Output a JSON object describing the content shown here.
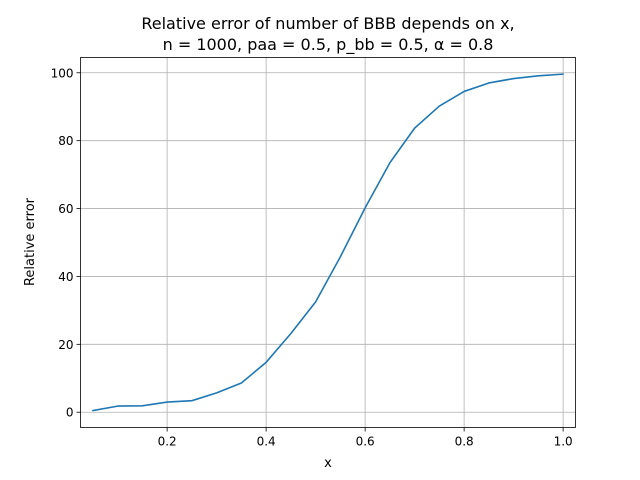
{
  "chart_data": {
    "type": "line",
    "title_line1": "Relative error of number of BBB depends on x,",
    "title_line2": "n = 1000, paa = 0.5, p_bb = 0.5, α = 0.8",
    "xlabel": "x",
    "ylabel": "Relative error",
    "xlim": [
      0.025,
      1.025
    ],
    "ylim": [
      -4.5,
      104.5
    ],
    "xticks": [
      0.2,
      0.4,
      0.6,
      0.8,
      1.0
    ],
    "xtick_labels": [
      "0.2",
      "0.4",
      "0.6",
      "0.8",
      "1.0"
    ],
    "yticks": [
      0,
      20,
      40,
      60,
      80,
      100
    ],
    "ytick_labels": [
      "0",
      "20",
      "40",
      "60",
      "80",
      "100"
    ],
    "grid": true,
    "line_color": "#1f77b4",
    "series": [
      {
        "x": [
          0.05,
          0.1,
          0.15,
          0.2,
          0.25,
          0.3,
          0.35,
          0.4,
          0.45,
          0.5,
          0.55,
          0.6,
          0.65,
          0.7,
          0.75,
          0.8,
          0.85,
          0.9,
          0.95,
          1.0
        ],
        "values": [
          0.5,
          1.8,
          1.9,
          3.0,
          3.4,
          5.7,
          8.6,
          14.7,
          23.2,
          32.5,
          45.8,
          60.2,
          73.5,
          83.7,
          90.2,
          94.5,
          97.0,
          98.3,
          99.1,
          99.6
        ]
      }
    ]
  }
}
